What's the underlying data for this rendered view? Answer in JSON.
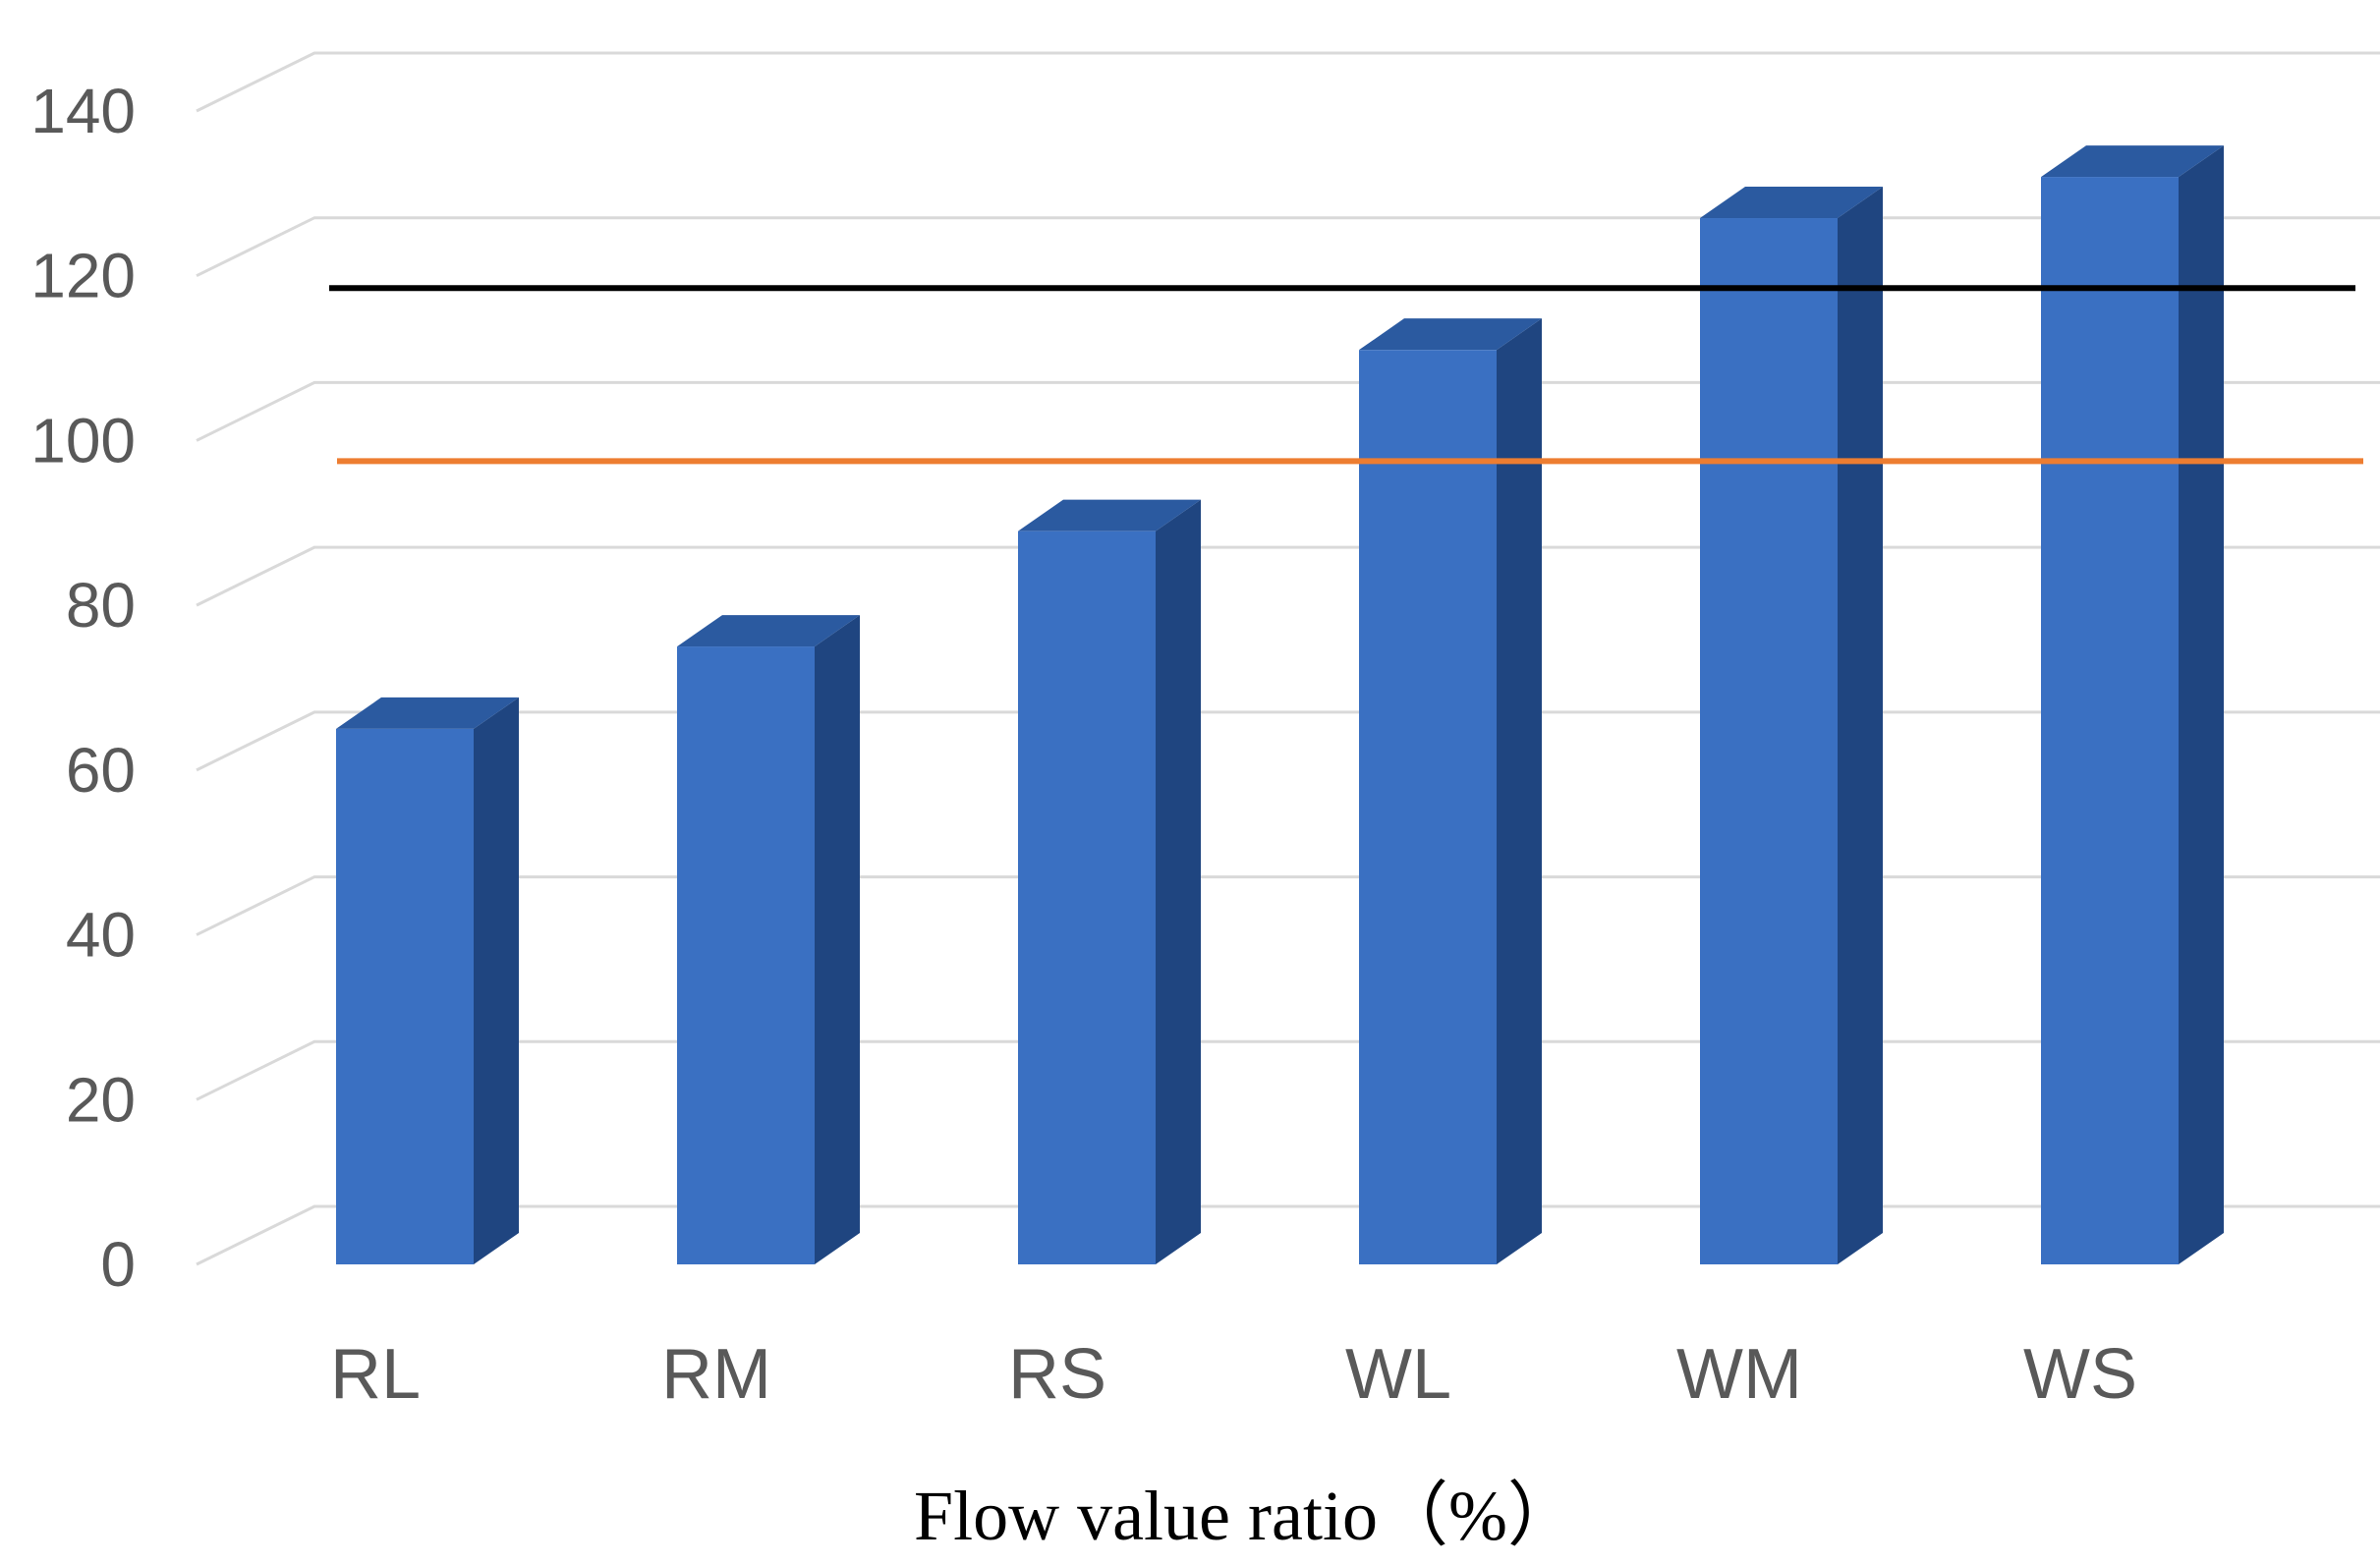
{
  "chart_data": {
    "type": "bar",
    "style": "3d-column",
    "categories": [
      "RL",
      "RM",
      "RS",
      "WL",
      "WM",
      "WS"
    ],
    "values": [
      65,
      75,
      89,
      111,
      127,
      132
    ],
    "xlabel": "Flow value ratio（%）",
    "ylabel": "",
    "ylim": [
      0,
      140
    ],
    "yticks": [
      0,
      20,
      40,
      60,
      80,
      100,
      120,
      140
    ],
    "grid": true,
    "reference_lines": [
      {
        "value": 118.5,
        "color": "#000000"
      },
      {
        "value": 97.5,
        "color": "#ed7d31"
      }
    ],
    "colors": {
      "bar_front": "#3a70c2",
      "bar_side": "#1f4580",
      "bar_top": "#2b5aa0"
    }
  }
}
